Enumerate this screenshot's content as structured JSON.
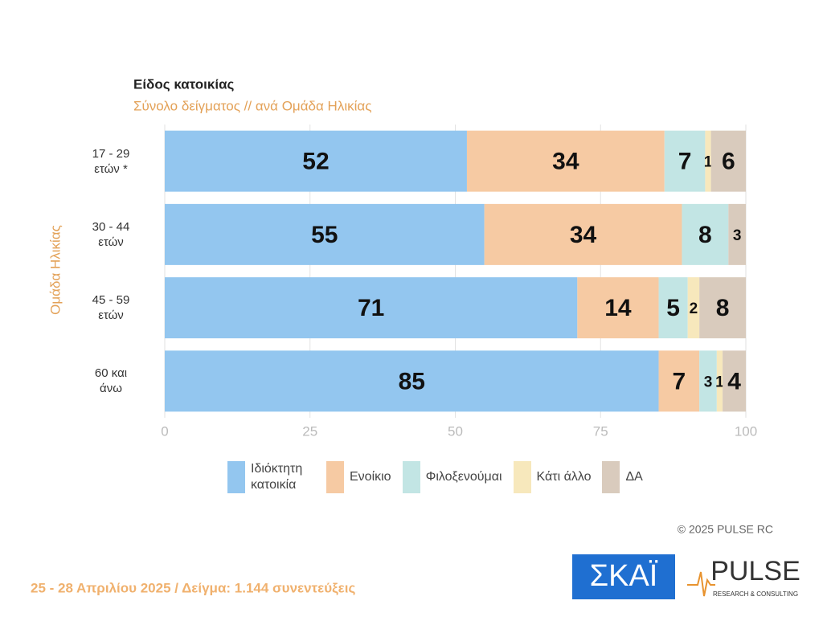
{
  "chart_data": {
    "type": "stacked-bar-horizontal",
    "title": "Είδος κατοικίας",
    "subtitle": "Σύνολο δείγματος // ανά Ομάδα Ηλικίας",
    "y_label": "Ομάδα Ηλικίας",
    "categories": [
      "17 - 29 ετών *",
      "30 - 44 ετών",
      "45 - 59 ετών",
      "60 και άνω"
    ],
    "series": [
      {
        "name": "Ιδιόκτητη κατοικία",
        "color": "#93c6ef",
        "values": [
          52,
          55,
          71,
          85
        ]
      },
      {
        "name": "Ενοίκιο",
        "color": "#f6caa3",
        "values": [
          34,
          34,
          14,
          7
        ]
      },
      {
        "name": "Φιλοξενούμαι",
        "color": "#c2e5e4",
        "values": [
          7,
          8,
          5,
          3
        ]
      },
      {
        "name": "Κάτι άλλο",
        "color": "#f7e8bc",
        "values": [
          1,
          null,
          2,
          1
        ]
      },
      {
        "name": "ΔΑ",
        "color": "#d9cbbd",
        "values": [
          6,
          3,
          8,
          4
        ]
      }
    ],
    "xlim": [
      0,
      100
    ],
    "xticks": [
      0,
      25,
      50,
      75,
      100
    ],
    "grid": true
  },
  "footer": {
    "copyright": "© 2025 PULSE RC",
    "note": "25 - 28 Απριλίου 2025  /  Δείγμα:  1.144 συνεντεύξεις"
  },
  "logos": {
    "skai": "ΣΚΑΪ",
    "pulse": "PULSE",
    "pulse_sub": "RESEARCH & CONSULTING"
  }
}
